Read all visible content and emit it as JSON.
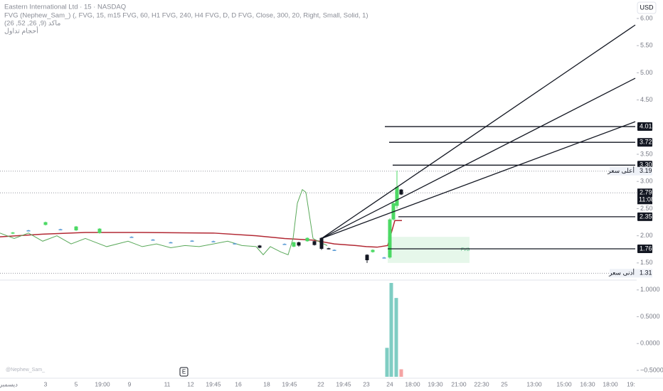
{
  "chart_data": {
    "type": "candlestick",
    "title": "Eastern International Ltd · 15 · NASDAQ",
    "indicators": [
      "FVG (Nephew_Sam_) (, FVG, 15, m15 FVG, 60, H1 FVG, 240, H4 FVG, D, D FVG, Close, 300, 20, Right, Small, Solid, 1)",
      "ماكد (9, 26, 52, 26)",
      "أحجام تداول"
    ],
    "currency": "USD",
    "watermark": "@Nephew_Sam_",
    "earnings": "E",
    "ylim": [
      1.21,
      6.34
    ],
    "yticks": [
      {
        "value": 6,
        "label": "6.00"
      },
      {
        "value": 5.5,
        "label": "5.50"
      },
      {
        "value": 5,
        "label": "5.00"
      },
      {
        "value": 4.5,
        "label": "4.50"
      },
      {
        "value": 4,
        "label": "4.00"
      },
      {
        "value": 3.5,
        "label": "3.50"
      },
      {
        "value": 3,
        "label": "3.00"
      },
      {
        "value": 2.5,
        "label": "2.50"
      },
      {
        "value": 2,
        "label": "2.00"
      },
      {
        "value": 1.5,
        "label": "1.50"
      }
    ],
    "candles": {
      "open": [
        2.05,
        2.1,
        2.2,
        2.12,
        2.1,
        2.05,
        1.98,
        1.93,
        1.88,
        1.91,
        1.9,
        1.86,
        1.82,
        1.85,
        1.8,
        1.88,
        1.9,
        1.9,
        1.96,
        1.77,
        1.74,
        1.65,
        1.7,
        1.6,
        1.6,
        2.3,
        2.55,
        2.85
      ],
      "high": [
        2.07,
        2.11,
        2.26,
        2.13,
        2.18,
        2.14,
        1.99,
        1.94,
        1.89,
        1.92,
        1.91,
        1.87,
        1.83,
        1.86,
        1.89,
        1.89,
        1.97,
        1.91,
        1.97,
        1.78,
        1.75,
        1.66,
        1.75,
        1.61,
        2.32,
        2.62,
        3.2,
        2.86
      ],
      "low": [
        2.03,
        2.09,
        2.19,
        2.11,
        2.09,
        2.04,
        1.97,
        1.92,
        1.87,
        1.9,
        1.89,
        1.85,
        1.77,
        1.84,
        1.79,
        1.8,
        1.89,
        1.82,
        1.74,
        1.75,
        1.73,
        1.5,
        1.69,
        1.59,
        1.58,
        2.28,
        2.5,
        2.75
      ],
      "close": [
        2.06,
        2.1,
        2.25,
        2.12,
        2.17,
        2.13,
        1.98,
        1.93,
        1.88,
        1.91,
        1.9,
        1.86,
        1.78,
        1.85,
        1.88,
        1.82,
        1.96,
        1.83,
        1.76,
        1.76,
        1.74,
        1.55,
        1.74,
        1.6,
        2.3,
        2.6,
        2.9,
        2.76
      ],
      "up_color": "#4cd964",
      "down_color": "#131722",
      "flat_color": "#5b9bd5"
    },
    "lines": [
      {
        "color": "#b22833",
        "values": [
          1.98,
          2.03,
          2.06,
          2.06,
          2.05,
          2.0,
          1.95,
          1.92,
          1.85,
          1.82,
          1.8,
          1.79,
          1.82,
          2.28,
          2.28
        ]
      },
      {
        "color": "#5aa95a",
        "values": [
          2.05,
          1.95,
          2.05,
          1.9,
          2.0,
          1.85,
          1.95,
          1.8,
          1.9,
          1.8,
          1.85,
          1.78,
          1.82,
          1.8,
          1.85,
          1.9,
          1.82,
          1.8,
          1.65,
          1.8,
          1.7,
          1.65,
          1.95,
          2.6,
          2.85,
          2.8,
          1.95,
          1.88,
          1.82
        ]
      }
    ],
    "fan_lines": [
      {
        "start": 1.95,
        "end": 5.88
      },
      {
        "start": 1.95,
        "end": 4.9
      },
      {
        "start": 1.95,
        "end": 4.1
      }
    ],
    "levels": [
      4.01,
      3.72,
      {
        "value": 3.3,
        "label": "3.30"
      },
      2.35,
      1.76
    ],
    "high_label": {
      "text": "أعلى سعر",
      "value": 3.19
    },
    "low_label": {
      "text": "أدنى سعر",
      "value": 1.31
    },
    "last_price": {
      "value": 2.79,
      "countdown": "11:08"
    },
    "fvg": {
      "label": "FVG",
      "top": 1.98,
      "bottom": 1.5,
      "color": "#e6f7ea"
    },
    "volume": {
      "ylim": [
        -0.62,
        1.17
      ],
      "yticks": [
        {
          "value": 1,
          "label": "1.0000"
        },
        {
          "value": 0.5,
          "label": "0.5000"
        },
        {
          "value": 0,
          "label": "0.0000"
        },
        {
          "value": -0.5,
          "label": "−0.5000"
        }
      ],
      "values": [
        -0.08,
        1.13,
        0.85,
        -0.48
      ],
      "colors": [
        "#7fcdc3",
        "#7fcdc3",
        "#7fcdc3",
        "#f4a3a3"
      ]
    },
    "time_labels": [
      "ديسمبر",
      "3",
      "5",
      "19:00",
      "9",
      "11",
      "12",
      "19:45",
      "16",
      "18",
      "19:45",
      "22",
      "19:45",
      "23",
      "24",
      "18:00",
      "19:30",
      "21:00",
      "22:30",
      "25",
      "13:00",
      "15:00",
      "16:30",
      "18:00",
      "19:"
    ]
  }
}
